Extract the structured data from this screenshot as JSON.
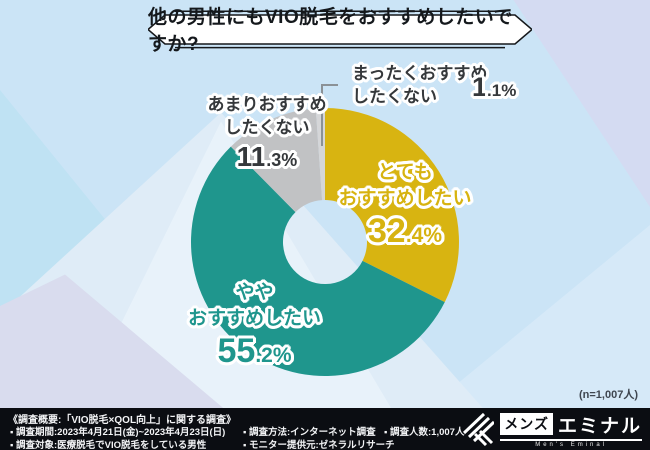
{
  "title": {
    "text": "他の男性にもVIO脱毛をおすすめしたいですか?"
  },
  "chart_data": {
    "type": "pie",
    "subtype": "donut",
    "title": "他の男性にもVIO脱毛をおすすめしたいですか?",
    "start_angle_deg": 0,
    "direction": "clockwise",
    "segments": [
      {
        "label": "とてもおすすめしたい",
        "value": 32.4,
        "color": "#d8b411"
      },
      {
        "label": "ややおすすめしたい",
        "value": 55.2,
        "color": "#1f968d"
      },
      {
        "label": "あまりおすすめしたくない",
        "value": 11.3,
        "color": "#c1c2c4"
      },
      {
        "label": "まったくおすすめしたくない",
        "value": 1.1,
        "color": "#d5d6d8"
      }
    ],
    "sample_note": "(n=1,007人)"
  },
  "donut_labels": [
    {
      "lines": [
        "とても",
        "おすすめしたい"
      ],
      "pct_int": "32",
      "pct_rest": ".4%"
    },
    {
      "lines": [
        "やや",
        "おすすめしたい"
      ],
      "pct_int": "55",
      "pct_rest": ".2%"
    },
    {
      "lines": [
        "あまりおすすめ",
        "したくない"
      ],
      "pct_int": "11",
      "pct_rest": ".3%"
    },
    {
      "lines": [
        "まったくおすすめ",
        "したくない"
      ],
      "pct_int": "1",
      "pct_rest": ".1%"
    }
  ],
  "footer": {
    "heading": "《調査概要:「VIO脱毛×QOL向上」に関する調査》",
    "items": {
      "period": "▪ 調査期間:2023年4月21日(金)~2023年4月23日(日)",
      "target": "▪ 調査対象:医療脱毛でVIO脱毛をしている男性",
      "method": "▪ 調査方法:インターネット調査",
      "monitor": "▪ モニター提供元:ゼネラルリサーチ",
      "count": "▪ 調査人数:1,007人"
    }
  },
  "logo": {
    "brand_box": "メンズ",
    "brand_name": "エミナル",
    "brand_sub": "Men's Eminal"
  },
  "colors": {
    "accent_gold": "#d8b411",
    "accent_teal": "#1f968d",
    "gray_slice": "#c1c2c4",
    "light_slice": "#d5d6d8",
    "footer_bg": "#0b0d12",
    "background": "#cbe4f6"
  }
}
